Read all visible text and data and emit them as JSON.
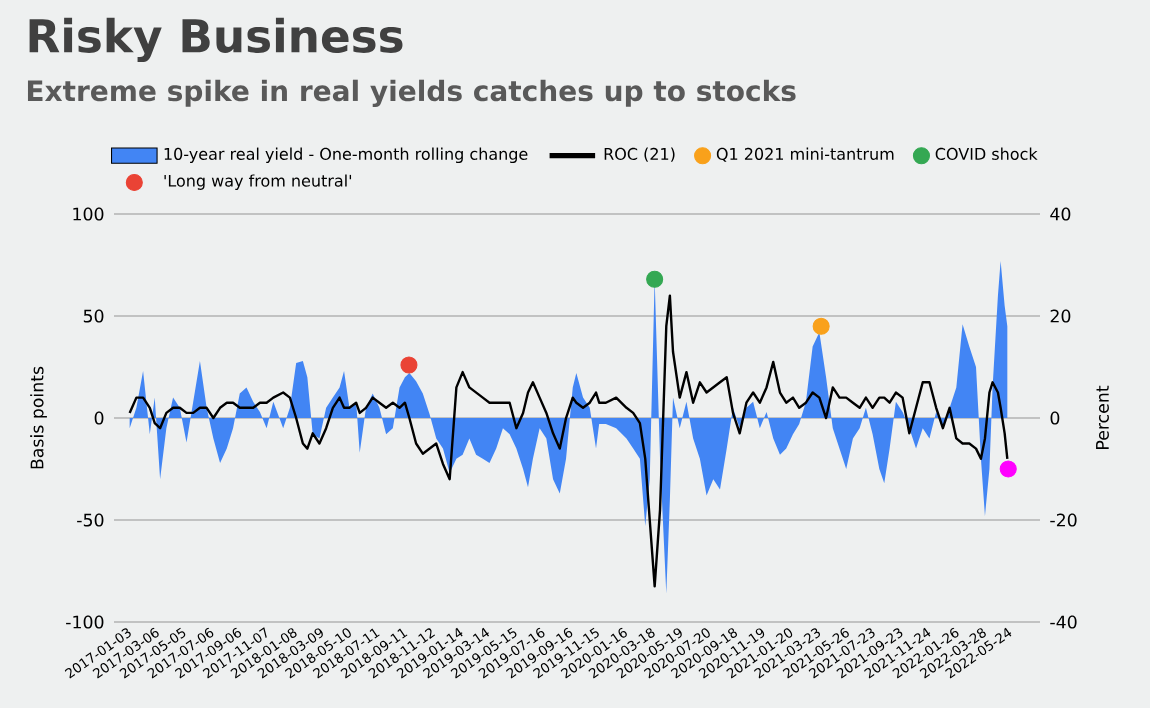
{
  "chart_data": {
    "type": "line",
    "title": "Risky Business",
    "subtitle": "Extreme spike in real yields catches up to stocks",
    "ylabel": "Basis points",
    "y2label": "Percent",
    "x": [
      "2017-01-07",
      "2017-01-22",
      "2017-02-06",
      "2017-02-21",
      "2017-03-04",
      "2017-03-16",
      "2017-03-30",
      "2017-04-14",
      "2017-04-29",
      "2017-05-14",
      "2017-05-29",
      "2017-06-13",
      "2017-06-28",
      "2017-07-13",
      "2017-07-28",
      "2017-08-12",
      "2017-08-26",
      "2017-09-10",
      "2017-09-25",
      "2017-10-10",
      "2017-10-25",
      "2017-11-09",
      "2017-11-24",
      "2017-12-16",
      "2017-12-31",
      "2018-01-14",
      "2018-01-29",
      "2018-02-08",
      "2018-02-20",
      "2018-03-07",
      "2018-03-22",
      "2018-04-06",
      "2018-04-21",
      "2018-05-01",
      "2018-05-13",
      "2018-05-28",
      "2018-06-05",
      "2018-06-19",
      "2018-07-04",
      "2018-07-19",
      "2018-08-03",
      "2018-08-18",
      "2018-09-02",
      "2018-09-14",
      "2018-09-24",
      "2018-10-09",
      "2018-10-24",
      "2018-11-08",
      "2018-11-23",
      "2018-12-08",
      "2018-12-23",
      "2019-01-07",
      "2019-01-21",
      "2019-02-05",
      "2019-02-20",
      "2019-03-07",
      "2019-03-22",
      "2019-04-06",
      "2019-04-21",
      "2019-05-06",
      "2019-05-21",
      "2019-06-05",
      "2019-06-16",
      "2019-06-27",
      "2019-07-12",
      "2019-07-27",
      "2019-08-11",
      "2019-08-26",
      "2019-09-09",
      "2019-09-24",
      "2019-10-02",
      "2019-10-17",
      "2019-11-01",
      "2019-11-15",
      "2019-11-22",
      "2019-12-07",
      "2019-12-30",
      "2020-01-22",
      "2020-02-06",
      "2020-02-21",
      "2020-03-04",
      "2020-03-14",
      "2020-03-25",
      "2020-04-06",
      "2020-04-20",
      "2020-04-28",
      "2020-05-05",
      "2020-05-20",
      "2020-06-04",
      "2020-06-19",
      "2020-07-04",
      "2020-07-19",
      "2020-08-03",
      "2020-08-18",
      "2020-09-02",
      "2020-09-16",
      "2020-10-01",
      "2020-10-16",
      "2020-10-31",
      "2020-11-15",
      "2020-11-30",
      "2020-12-15",
      "2020-12-30",
      "2021-01-13",
      "2021-01-28",
      "2021-02-11",
      "2021-02-26",
      "2021-03-13",
      "2021-03-28",
      "2021-04-12",
      "2021-04-27",
      "2021-05-12",
      "2021-05-27",
      "2021-06-11",
      "2021-06-26",
      "2021-07-10",
      "2021-07-25",
      "2021-08-09",
      "2021-08-20",
      "2021-09-01",
      "2021-09-15",
      "2021-09-30",
      "2021-10-15",
      "2021-10-30",
      "2021-11-14",
      "2021-11-29",
      "2021-12-14",
      "2021-12-29",
      "2022-01-13",
      "2022-01-28",
      "2022-02-11",
      "2022-02-26",
      "2022-03-13",
      "2022-03-24",
      "2022-04-02",
      "2022-04-12",
      "2022-04-19",
      "2022-05-01",
      "2022-05-07",
      "2022-05-16",
      "2022-05-22"
    ],
    "series": [
      {
        "name": "10-year real yield - One-month rolling change",
        "type": "area",
        "color": "#4285f4",
        "values": [
          -5,
          5,
          23,
          -8,
          10,
          -30,
          -5,
          10,
          5,
          -12,
          8,
          28,
          5,
          -10,
          -22,
          -15,
          -5,
          12,
          15,
          8,
          3,
          -5,
          8,
          -5,
          5,
          27,
          28,
          20,
          -8,
          -10,
          5,
          10,
          15,
          23,
          5,
          8,
          -17,
          5,
          12,
          5,
          -8,
          -5,
          15,
          20,
          22,
          18,
          12,
          2,
          -10,
          -15,
          -27,
          -20,
          -18,
          -10,
          -18,
          -20,
          -22,
          -15,
          -5,
          -8,
          -15,
          -25,
          -34,
          -20,
          -5,
          -10,
          -30,
          -37,
          -20,
          15,
          22,
          10,
          5,
          -15,
          -3,
          -3,
          -5,
          -10,
          -15,
          -20,
          -53,
          -30,
          68,
          -20,
          -86,
          -40,
          10,
          -5,
          8,
          -10,
          -20,
          -38,
          -30,
          -35,
          -15,
          5,
          -5,
          5,
          8,
          -5,
          3,
          -10,
          -18,
          -15,
          -8,
          -3,
          8,
          35,
          42,
          20,
          -5,
          -15,
          -25,
          -10,
          -5,
          5,
          -8,
          -25,
          -32,
          -15,
          8,
          3,
          -5,
          -15,
          -5,
          -10,
          3,
          -5,
          5,
          15,
          46,
          35,
          25,
          -20,
          -48,
          -25,
          15,
          60,
          77,
          55,
          45
        ]
      },
      {
        "name": "ROC (21)",
        "axis": "y2",
        "color": "#000000",
        "values": [
          1,
          4,
          4,
          2,
          -1,
          -2,
          1,
          2,
          2,
          1,
          1,
          2,
          2,
          0,
          2,
          3,
          3,
          2,
          2,
          2,
          3,
          3,
          4,
          5,
          4,
          0,
          -5,
          -6,
          -3,
          -5,
          -2,
          2,
          4,
          2,
          2,
          3,
          1,
          2,
          4,
          3,
          2,
          3,
          2,
          3,
          0,
          -5,
          -7,
          -6,
          -5,
          -9,
          -12,
          6,
          9,
          6,
          5,
          4,
          3,
          3,
          3,
          3,
          -2,
          1,
          5,
          7,
          4,
          1,
          -3,
          -6,
          0,
          4,
          3,
          2,
          3,
          5,
          3,
          3,
          4,
          2,
          1,
          -1,
          -8,
          -20,
          -33,
          -18,
          18,
          24,
          13,
          4,
          9,
          3,
          7,
          5,
          6,
          7,
          8,
          1,
          -3,
          3,
          5,
          3,
          6,
          11,
          5,
          3,
          4,
          2,
          3,
          5,
          4,
          0,
          6,
          4,
          4,
          3,
          2,
          4,
          2,
          4,
          4,
          3,
          5,
          4,
          -3,
          2,
          7,
          7,
          2,
          -2,
          2,
          -4,
          -5,
          -5,
          -6,
          -8,
          -4,
          5,
          7,
          5,
          2,
          -3,
          -8
        ]
      },
      {
        "name": "Q1 2021 mini-tantrum",
        "type": "scatter",
        "color": "#f9a11b",
        "x": [
          "2021-04-01"
        ],
        "values": [
          45
        ]
      },
      {
        "name": "COVID shock",
        "type": "scatter",
        "color": "#34a853",
        "x": [
          "2020-03-25"
        ],
        "values": [
          68
        ]
      },
      {
        "name": "'Long way from neutral'",
        "type": "scatter",
        "color": "#ea4335",
        "x": [
          "2018-09-23"
        ],
        "values": [
          26
        ]
      },
      {
        "type": "scatter",
        "axis": "y2",
        "color": "#ff00ff",
        "x": [
          "2022-05-24"
        ],
        "values": [
          -10
        ]
      }
    ],
    "xlim": [
      "2016-12-03",
      "2022-08-03"
    ],
    "xticks": [
      "2017-01-03",
      "2017-03-06",
      "2017-05-05",
      "2017-07-06",
      "2017-09-06",
      "2017-11-07",
      "2018-01-08",
      "2018-03-09",
      "2018-05-10",
      "2018-07-11",
      "2018-09-11",
      "2018-11-12",
      "2019-01-14",
      "2019-03-14",
      "2019-05-15",
      "2019-07-16",
      "2019-09-16",
      "2019-11-15",
      "2020-01-16",
      "2020-03-18",
      "2020-05-19",
      "2020-07-20",
      "2020-09-18",
      "2020-11-19",
      "2021-01-20",
      "2021-03-23",
      "2021-05-26",
      "2021-07-23",
      "2021-09-23",
      "2021-11-24",
      "2022-01-26",
      "2022-03-28",
      "2022-05-24"
    ],
    "ylim": [
      -100,
      100
    ],
    "yticks": [
      -100,
      -50,
      0,
      50,
      100
    ],
    "y2lim": [
      -40,
      40
    ],
    "y2ticks": [
      -40,
      -20,
      0,
      20,
      40
    ],
    "grid": "y",
    "legend": "top"
  }
}
